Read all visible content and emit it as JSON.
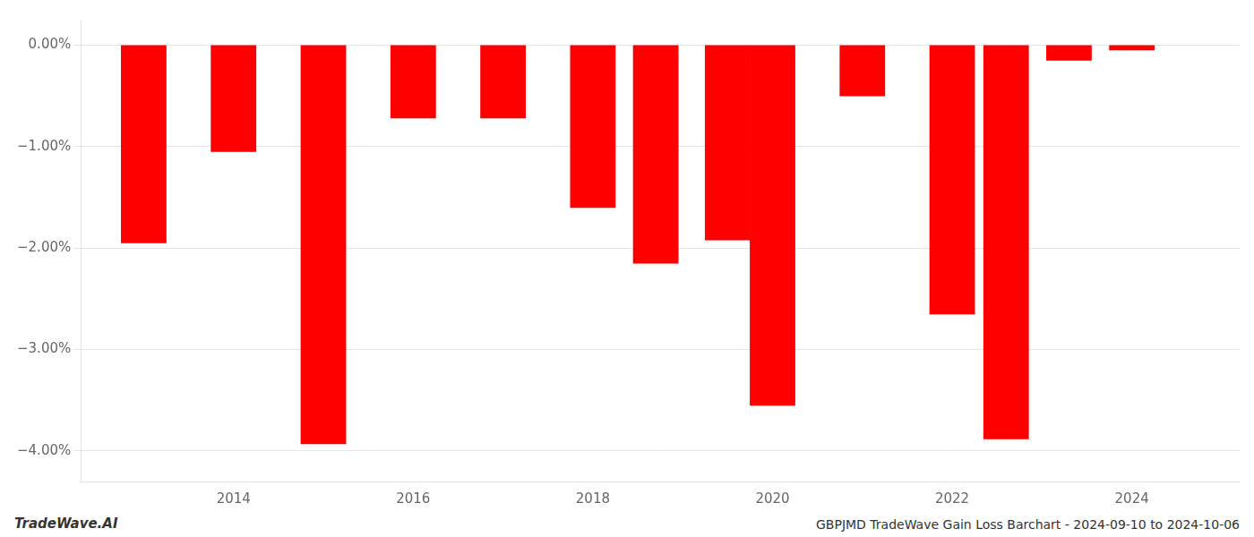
{
  "chart_data": {
    "type": "bar",
    "x": [
      2013,
      2014,
      2015,
      2016,
      2017,
      2018,
      2018.7,
      2019.5,
      2020,
      2021,
      2022,
      2022.6,
      2023.3,
      2024
    ],
    "values": [
      -1.95,
      -1.05,
      -3.93,
      -0.72,
      -0.72,
      -1.6,
      -2.15,
      -1.92,
      -3.55,
      -0.5,
      -2.65,
      -3.88,
      -0.15,
      -0.05
    ],
    "color": "#ff0000",
    "xlim": [
      2012.3,
      2025.2
    ],
    "xticks": [
      2014,
      2016,
      2018,
      2020,
      2022,
      2024
    ],
    "ylim": [
      -4.3,
      0.25
    ],
    "yticks": [
      {
        "value": 0.0,
        "label": "0.00%"
      },
      {
        "value": -1.0,
        "label": "−1.00%"
      },
      {
        "value": -2.0,
        "label": "−2.00%"
      },
      {
        "value": -3.0,
        "label": "−3.00%"
      },
      {
        "value": -4.0,
        "label": "−4.00%"
      }
    ],
    "grid": true,
    "annotations": [
      "TradeWave.AI",
      "GBPJMD TradeWave Gain Loss Barchart - 2024-09-10 to 2024-10-06"
    ]
  }
}
